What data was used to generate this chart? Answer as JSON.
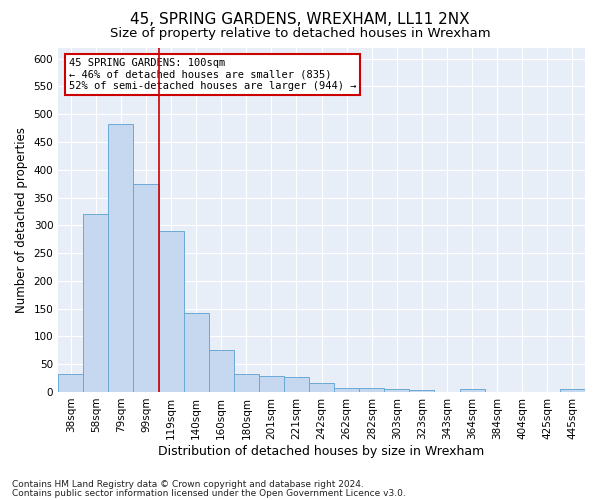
{
  "title1": "45, SPRING GARDENS, WREXHAM, LL11 2NX",
  "title2": "Size of property relative to detached houses in Wrexham",
  "xlabel": "Distribution of detached houses by size in Wrexham",
  "ylabel": "Number of detached properties",
  "categories": [
    "38sqm",
    "58sqm",
    "79sqm",
    "99sqm",
    "119sqm",
    "140sqm",
    "160sqm",
    "180sqm",
    "201sqm",
    "221sqm",
    "242sqm",
    "262sqm",
    "282sqm",
    "303sqm",
    "323sqm",
    "343sqm",
    "364sqm",
    "384sqm",
    "404sqm",
    "425sqm",
    "445sqm"
  ],
  "values": [
    32,
    320,
    482,
    375,
    290,
    143,
    76,
    33,
    29,
    27,
    16,
    8,
    7,
    5,
    4,
    0,
    5,
    0,
    0,
    0,
    5
  ],
  "bar_color": "#c5d8f0",
  "bar_edge_color": "#6aaad4",
  "property_bin_index": 3,
  "annotation_line1": "45 SPRING GARDENS: 100sqm",
  "annotation_line2": "← 46% of detached houses are smaller (835)",
  "annotation_line3": "52% of semi-detached houses are larger (944) →",
  "annotation_box_color": "#ffffff",
  "annotation_box_edge": "#cc0000",
  "red_line_color": "#cc0000",
  "footer1": "Contains HM Land Registry data © Crown copyright and database right 2024.",
  "footer2": "Contains public sector information licensed under the Open Government Licence v3.0.",
  "ylim": [
    0,
    620
  ],
  "yticks": [
    0,
    50,
    100,
    150,
    200,
    250,
    300,
    350,
    400,
    450,
    500,
    550,
    600
  ],
  "bg_color": "#e8eef8",
  "grid_color": "#ffffff",
  "fig_bg_color": "#ffffff",
  "title1_fontsize": 11,
  "title2_fontsize": 9.5,
  "xlabel_fontsize": 9,
  "ylabel_fontsize": 8.5,
  "tick_fontsize": 7.5,
  "footer_fontsize": 6.5
}
